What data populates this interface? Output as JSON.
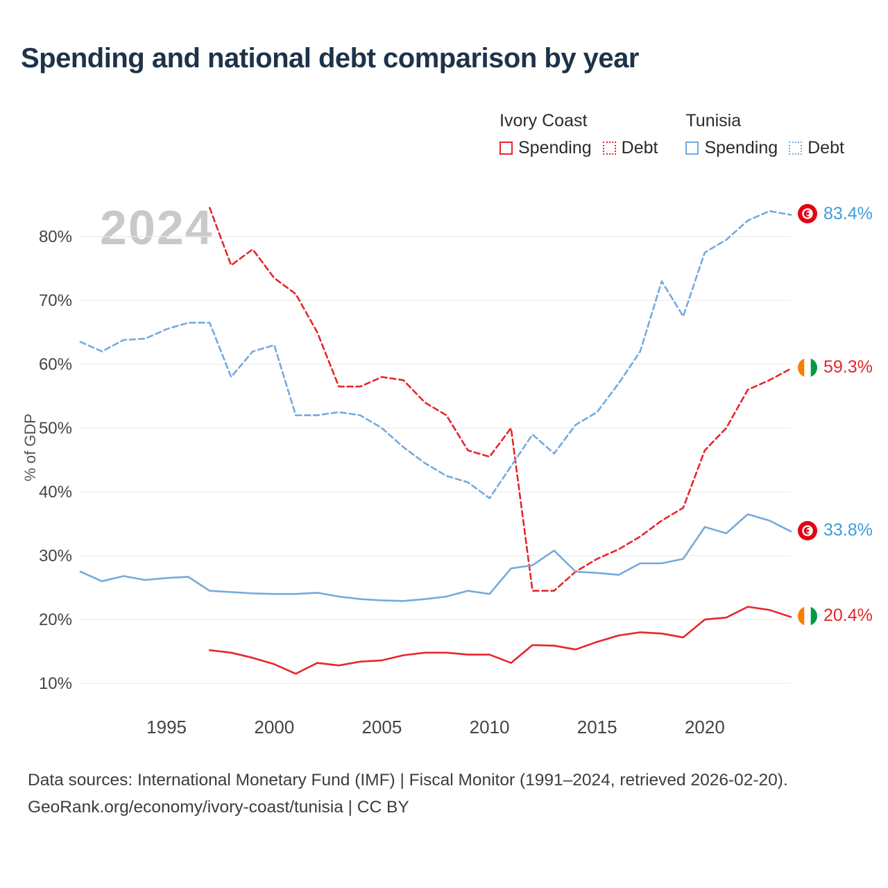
{
  "title": "Spending and national debt comparison by year",
  "watermark": "2024",
  "legend": {
    "groups": [
      {
        "name": "Ivory Coast",
        "color": "#e5262c",
        "items": [
          {
            "label": "Spending",
            "style": "solid"
          },
          {
            "label": "Debt",
            "style": "dotted"
          }
        ]
      },
      {
        "name": "Tunisia",
        "color": "#74aadc",
        "items": [
          {
            "label": "Spending",
            "style": "solid"
          },
          {
            "label": "Debt",
            "style": "dotted"
          }
        ]
      }
    ]
  },
  "chart_data": {
    "type": "line",
    "title": "Spending and national debt comparison by year",
    "xlabel": "",
    "ylabel": "% of GDP",
    "xlim": [
      1991,
      2024
    ],
    "ylim": [
      10,
      85
    ],
    "grid": "horizontal",
    "legend_position": "top-right",
    "x": [
      1991,
      1992,
      1993,
      1994,
      1995,
      1996,
      1997,
      1998,
      1999,
      2000,
      2001,
      2002,
      2003,
      2004,
      2005,
      2006,
      2007,
      2008,
      2009,
      2010,
      2011,
      2012,
      2013,
      2014,
      2015,
      2016,
      2017,
      2018,
      2019,
      2020,
      2021,
      2022,
      2023,
      2024
    ],
    "xticks": [
      1995,
      2000,
      2005,
      2010,
      2015,
      2020
    ],
    "yticks": [
      10,
      20,
      30,
      40,
      50,
      60,
      70,
      80
    ],
    "ytick_suffix": "%",
    "series": [
      {
        "name": "Ivory Coast Spending",
        "color": "#e5262c",
        "dash": false,
        "values": [
          null,
          null,
          null,
          null,
          null,
          null,
          15.2,
          14.8,
          14.0,
          13.0,
          11.5,
          13.2,
          12.8,
          13.4,
          13.6,
          14.4,
          14.8,
          14.8,
          14.5,
          14.5,
          13.2,
          16.0,
          15.9,
          15.3,
          16.5,
          17.5,
          18.0,
          17.8,
          17.2,
          20.0,
          20.3,
          22.0,
          21.5,
          20.4
        ]
      },
      {
        "name": "Ivory Coast Debt",
        "color": "#e5262c",
        "dash": true,
        "values": [
          null,
          null,
          null,
          null,
          null,
          null,
          84.5,
          75.5,
          78.0,
          73.5,
          71.0,
          65.0,
          56.5,
          56.5,
          58.0,
          57.5,
          54.0,
          52.0,
          46.5,
          45.5,
          50.0,
          24.5,
          24.5,
          27.5,
          29.5,
          31.0,
          33.0,
          35.5,
          37.5,
          46.5,
          50.0,
          56.0,
          57.5,
          59.3
        ]
      },
      {
        "name": "Tunisia Spending",
        "color": "#74aadc",
        "dash": false,
        "values": [
          27.5,
          26.0,
          26.8,
          26.2,
          26.5,
          26.7,
          24.5,
          24.3,
          24.1,
          24.0,
          24.0,
          24.2,
          23.6,
          23.2,
          23.0,
          22.9,
          23.2,
          23.6,
          24.5,
          24.0,
          28.0,
          28.5,
          30.8,
          27.5,
          27.3,
          27.0,
          28.8,
          28.8,
          29.5,
          34.5,
          33.5,
          36.5,
          35.5,
          33.8
        ]
      },
      {
        "name": "Tunisia Debt",
        "color": "#74aadc",
        "dash": true,
        "values": [
          63.5,
          62.0,
          63.8,
          64.0,
          65.5,
          66.5,
          66.5,
          58.0,
          62.0,
          63.0,
          52.0,
          52.0,
          52.5,
          52.0,
          50.0,
          47.0,
          44.5,
          42.5,
          41.5,
          39.0,
          44.0,
          49.0,
          46.0,
          50.5,
          52.5,
          57.0,
          62.0,
          73.0,
          67.5,
          77.5,
          79.5,
          82.5,
          84.0,
          83.4
        ]
      }
    ],
    "end_labels": [
      {
        "text": "83.4%",
        "value": 83.4,
        "color": "#3f9cdb",
        "flag": "tunisia"
      },
      {
        "text": "59.3%",
        "value": 59.3,
        "color": "#e5262c",
        "flag": "ivory-coast"
      },
      {
        "text": "33.8%",
        "value": 33.8,
        "color": "#3f9cdb",
        "flag": "tunisia"
      },
      {
        "text": "20.4%",
        "value": 20.4,
        "color": "#e5262c",
        "flag": "ivory-coast"
      }
    ]
  },
  "y_axis_label": "% of GDP",
  "footer": {
    "line1": "Data sources: International Monetary Fund (IMF) | Fiscal Monitor (1991–2024, retrieved 2026-02-20).",
    "line2": "GeoRank.org/economy/ivory-coast/tunisia | CC BY"
  }
}
